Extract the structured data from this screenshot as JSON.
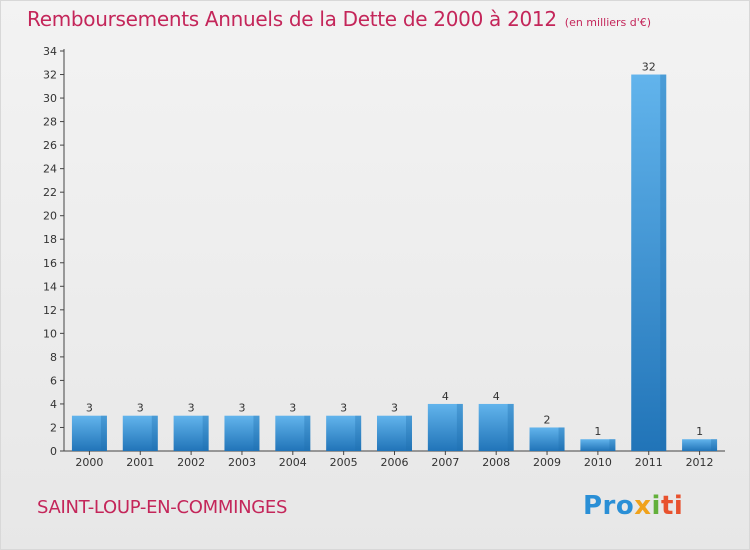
{
  "header": {
    "title": "Remboursements Annuels de la Dette de 2000 à 2012",
    "subtitle": "(en milliers d'€)"
  },
  "footer": {
    "commune": "SAINT-LOUP-EN-COMMINGES",
    "logo": {
      "p1": "Pro",
      "p2": "x",
      "p3": "i",
      "p4": "ti"
    }
  },
  "colors": {
    "title": "#c4265a",
    "bar_light": "#5aaee8",
    "bar_dark": "#2378bf",
    "axis": "#444444"
  },
  "chart_data": {
    "type": "bar",
    "title": "Remboursements Annuels de la Dette de 2000 à 2012",
    "ylabel": "",
    "xlabel": "",
    "ylim": [
      0,
      34
    ],
    "yticks": [
      0,
      2,
      4,
      6,
      8,
      10,
      12,
      14,
      16,
      18,
      20,
      22,
      24,
      26,
      28,
      30,
      32,
      34
    ],
    "grid": false,
    "categories": [
      "2000",
      "2001",
      "2002",
      "2003",
      "2004",
      "2005",
      "2006",
      "2007",
      "2008",
      "2009",
      "2010",
      "2011",
      "2012"
    ],
    "values": [
      3,
      3,
      3,
      3,
      3,
      3,
      3,
      4,
      4,
      2,
      1,
      32,
      1
    ]
  }
}
